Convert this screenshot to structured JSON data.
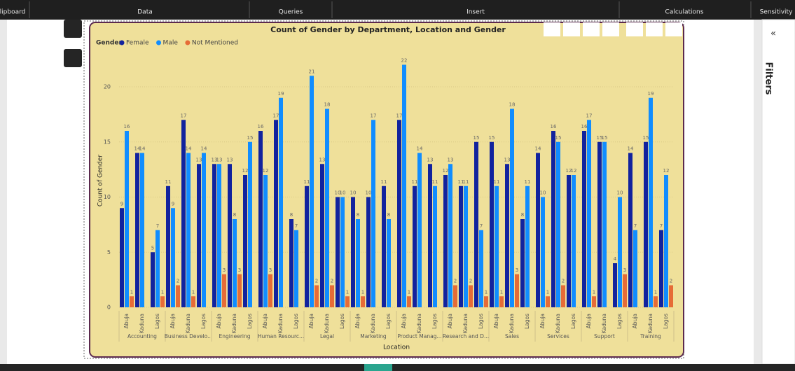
{
  "ribbon": {
    "groups": [
      "lipboard",
      "Data",
      "Queries",
      "Insert",
      "Calculations",
      "Sensitivity"
    ]
  },
  "pane": {
    "title": "Filters"
  },
  "chart_data": {
    "type": "bar",
    "title": "Count of Gender by Department, Location and Gender",
    "legend_title": "Gender",
    "x_label": "Location",
    "y_label": "Count of Gender",
    "groups": [
      "Accounting",
      "Business Develo...",
      "Engineering",
      "Human Resourc...",
      "Legal",
      "Marketing",
      "Product Manag...",
      "Research and D...",
      "Sales",
      "Services",
      "Support",
      "Training"
    ],
    "categories": [
      "Abuja",
      "Kaduna",
      "Lagos",
      "Abuja",
      "Kaduna",
      "Lagos",
      "Abuja",
      "Kaduna",
      "Lagos",
      "Abuja",
      "Kaduna",
      "Lagos",
      "Abuja",
      "Kaduna",
      "Lagos",
      "Abuja",
      "Kaduna",
      "Lagos",
      "Abuja",
      "Kaduna",
      "Lagos",
      "Abuja",
      "Kaduna",
      "Lagos",
      "Abuja",
      "Kaduna",
      "Lagos",
      "Abuja",
      "Kaduna",
      "Lagos",
      "Abuja",
      "Kaduna",
      "Lagos",
      "Abuja",
      "Kaduna",
      "Lagos"
    ],
    "series": [
      {
        "name": "Female",
        "color": "#12239e",
        "values": [
          9,
          14,
          5,
          11,
          17,
          13,
          13,
          13,
          12,
          16,
          17,
          8,
          11,
          13,
          10,
          10,
          10,
          11,
          17,
          11,
          13,
          12,
          11,
          15,
          15,
          13,
          8,
          14,
          16,
          12,
          16,
          15,
          4,
          14,
          15,
          7
        ]
      },
      {
        "name": "Male",
        "color": "#118dff",
        "values": [
          16,
          14,
          7,
          9,
          14,
          14,
          13,
          8,
          15,
          12,
          19,
          7,
          21,
          18,
          10,
          8,
          17,
          8,
          22,
          14,
          11,
          13,
          11,
          7,
          11,
          18,
          11,
          10,
          15,
          12,
          17,
          15,
          10,
          7,
          19,
          12
        ]
      },
      {
        "name": "Not Mentioned",
        "color": "#e66c37",
        "values": [
          1,
          null,
          1,
          2,
          1,
          null,
          3,
          3,
          null,
          3,
          null,
          null,
          2,
          2,
          1,
          1,
          null,
          null,
          1,
          null,
          null,
          2,
          2,
          1,
          1,
          3,
          null,
          1,
          2,
          null,
          1,
          null,
          3,
          null,
          1,
          2
        ]
      }
    ],
    "ylim": [
      0,
      23
    ],
    "yticks": [
      0,
      5,
      10,
      15,
      20
    ],
    "grid": true
  }
}
